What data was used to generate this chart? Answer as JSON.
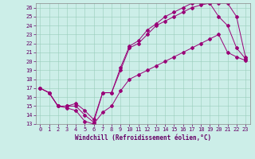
{
  "title": "",
  "xlabel": "Windchill (Refroidissement éolien,°C)",
  "bg_color": "#cceee8",
  "line_color": "#990077",
  "xlim": [
    -0.5,
    23.5
  ],
  "ylim": [
    13,
    26.5
  ],
  "xticks": [
    0,
    1,
    2,
    3,
    4,
    5,
    6,
    7,
    8,
    9,
    10,
    11,
    12,
    13,
    14,
    15,
    16,
    17,
    18,
    19,
    20,
    21,
    22,
    23
  ],
  "yticks": [
    13,
    14,
    15,
    16,
    17,
    18,
    19,
    20,
    21,
    22,
    23,
    24,
    25,
    26
  ],
  "line1_x": [
    0,
    1,
    2,
    3,
    4,
    5,
    6,
    7,
    8,
    9,
    10,
    11,
    12,
    13,
    14,
    15,
    16,
    17,
    18,
    19,
    20,
    21,
    22,
    23
  ],
  "line1_y": [
    17.0,
    16.5,
    15.0,
    14.8,
    14.5,
    13.3,
    13.0,
    14.3,
    15.0,
    16.7,
    18.0,
    18.5,
    19.0,
    19.5,
    20.0,
    20.5,
    21.0,
    21.5,
    22.0,
    22.5,
    23.0,
    21.0,
    20.5,
    20.1
  ],
  "line2_x": [
    0,
    1,
    2,
    3,
    4,
    5,
    6,
    7,
    8,
    9,
    10,
    11,
    12,
    13,
    14,
    15,
    16,
    17,
    18,
    19,
    20,
    21,
    22,
    23
  ],
  "line2_y": [
    17.0,
    16.5,
    15.0,
    15.0,
    15.3,
    14.5,
    13.5,
    16.5,
    16.5,
    19.0,
    21.5,
    22.0,
    23.0,
    24.0,
    24.5,
    25.0,
    25.5,
    26.0,
    26.3,
    26.5,
    25.0,
    24.0,
    21.5,
    20.3
  ],
  "line3_x": [
    0,
    1,
    2,
    3,
    4,
    5,
    6,
    7,
    8,
    9,
    10,
    11,
    12,
    13,
    14,
    15,
    16,
    17,
    18,
    19,
    20,
    21,
    22,
    23
  ],
  "line3_y": [
    17.0,
    16.5,
    15.0,
    15.0,
    15.0,
    14.0,
    13.2,
    16.5,
    16.5,
    19.3,
    21.7,
    22.3,
    23.5,
    24.2,
    25.0,
    25.5,
    26.0,
    26.5,
    26.5,
    26.5,
    26.5,
    26.5,
    25.0,
    20.5
  ],
  "xlabel_fontsize": 5.5,
  "tick_fontsize": 5.0,
  "linewidth": 0.7,
  "markersize": 2.0
}
